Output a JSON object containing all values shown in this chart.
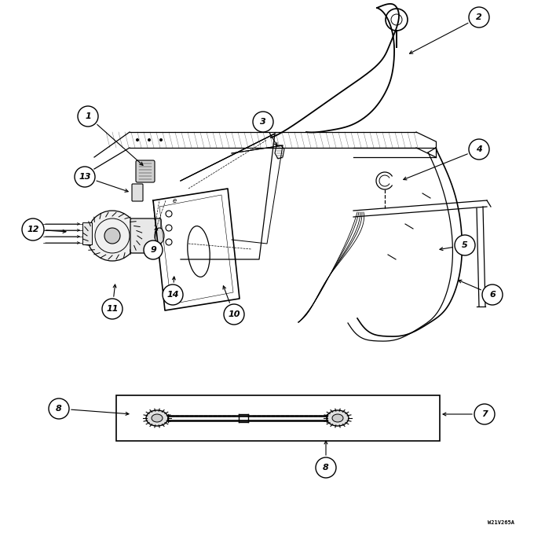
{
  "figure_width": 6.8,
  "figure_height": 6.96,
  "dpi": 100,
  "bg_color": "#ffffff",
  "watermark": "W21V265A"
}
